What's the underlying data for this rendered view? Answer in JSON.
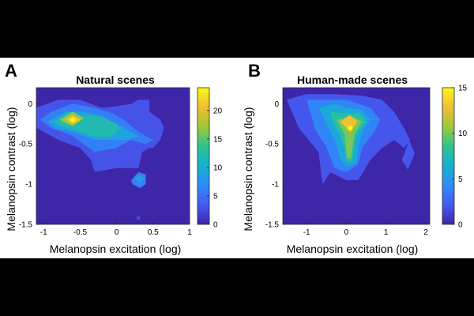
{
  "colors": {
    "background_band": "#000000",
    "plot_background": "#ffffff",
    "colormap": [
      "#3e26a8",
      "#4659f1",
      "#2e8cf7",
      "#16b0d1",
      "#2ec48f",
      "#9ec83a",
      "#f1bd35",
      "#f9fa14"
    ]
  },
  "chart_data": [
    {
      "panel_label": "A",
      "type": "heatmap",
      "style": "filled contour",
      "colormap": "parula",
      "title": "Natural scenes",
      "xlabel": "Melanopsin excitation (log)",
      "ylabel": "Melanopsin contrast (log)",
      "xlim": [
        -1.1,
        1.0
      ],
      "ylim": [
        -1.5,
        0.2
      ],
      "xticks": [
        -1,
        -0.5,
        0,
        0.5,
        1
      ],
      "xtick_labels": [
        "-1",
        "-0.5",
        "0",
        "0.5",
        "1"
      ],
      "yticks": [
        0,
        -0.5,
        -1,
        -1.5
      ],
      "ytick_labels": [
        "0",
        "-0.5",
        "-1",
        "-1.5"
      ],
      "colorbar": {
        "range": [
          0,
          24
        ],
        "ticks": [
          0,
          5,
          10,
          15,
          20
        ],
        "tick_labels": [
          "0",
          "5",
          "10",
          "15",
          "20"
        ]
      },
      "peak": {
        "x": -0.6,
        "y": -0.2,
        "value": 24
      },
      "grid": false,
      "levels": [
        {
          "level": 3,
          "polygons": [
            [
              [
                -1.1,
                -0.05
              ],
              [
                -0.8,
                0.05
              ],
              [
                -0.5,
                0.05
              ],
              [
                -0.2,
                -0.05
              ],
              [
                0.0,
                -0.03
              ],
              [
                0.2,
                0.0
              ],
              [
                0.3,
                0.05
              ],
              [
                0.45,
                0.05
              ],
              [
                0.45,
                -0.1
              ],
              [
                0.6,
                -0.2
              ],
              [
                0.65,
                -0.3
              ],
              [
                0.6,
                -0.45
              ],
              [
                0.5,
                -0.55
              ],
              [
                0.45,
                -0.55
              ],
              [
                0.35,
                -0.6
              ],
              [
                0.3,
                -0.8
              ],
              [
                0.0,
                -0.8
              ],
              [
                -0.3,
                -0.85
              ],
              [
                -0.35,
                -0.7
              ],
              [
                -0.5,
                -0.55
              ],
              [
                -0.8,
                -0.45
              ],
              [
                -1.1,
                -0.3
              ]
            ],
            [
              [
                0.28,
                -1.4
              ],
              [
                0.32,
                -1.4
              ],
              [
                0.32,
                -1.44
              ],
              [
                0.28,
                -1.44
              ]
            ]
          ]
        },
        {
          "level": 6,
          "polygons": [
            [
              [
                -1.05,
                -0.2
              ],
              [
                -0.9,
                -0.1
              ],
              [
                -0.6,
                0.0
              ],
              [
                -0.3,
                -0.05
              ],
              [
                -0.05,
                -0.12
              ],
              [
                0.1,
                -0.2
              ],
              [
                0.3,
                -0.35
              ],
              [
                0.5,
                -0.45
              ],
              [
                0.4,
                -0.5
              ],
              [
                0.2,
                -0.45
              ],
              [
                0.0,
                -0.55
              ],
              [
                -0.3,
                -0.6
              ],
              [
                -0.6,
                -0.4
              ],
              [
                -0.9,
                -0.3
              ]
            ],
            [
              [
                0.2,
                -0.95
              ],
              [
                0.3,
                -0.85
              ],
              [
                0.4,
                -0.88
              ],
              [
                0.4,
                -1.0
              ],
              [
                0.32,
                -1.05
              ],
              [
                0.22,
                -1.0
              ]
            ]
          ]
        },
        {
          "level": 9,
          "polygons": [
            [
              [
                -0.95,
                -0.22
              ],
              [
                -0.7,
                -0.1
              ],
              [
                -0.45,
                -0.1
              ],
              [
                -0.2,
                -0.15
              ],
              [
                0.0,
                -0.25
              ],
              [
                0.3,
                -0.4
              ],
              [
                0.15,
                -0.45
              ],
              [
                -0.05,
                -0.45
              ],
              [
                -0.3,
                -0.45
              ],
              [
                -0.6,
                -0.35
              ],
              [
                -0.85,
                -0.3
              ]
            ],
            [
              [
                0.25,
                -0.93
              ],
              [
                0.32,
                -0.89
              ],
              [
                0.37,
                -0.93
              ],
              [
                0.32,
                -0.98
              ]
            ]
          ]
        },
        {
          "level": 12,
          "polygons": [
            [
              [
                -0.85,
                -0.22
              ],
              [
                -0.65,
                -0.1
              ],
              [
                -0.45,
                -0.15
              ],
              [
                -0.25,
                -0.15
              ],
              [
                0.0,
                -0.25
              ],
              [
                0.05,
                -0.32
              ],
              [
                -0.1,
                -0.42
              ],
              [
                -0.35,
                -0.4
              ],
              [
                -0.6,
                -0.32
              ],
              [
                -0.8,
                -0.27
              ]
            ]
          ]
        },
        {
          "level": 17,
          "polygons": [
            [
              [
                -0.78,
                -0.2
              ],
              [
                -0.6,
                -0.1
              ],
              [
                -0.45,
                -0.18
              ],
              [
                -0.6,
                -0.28
              ]
            ]
          ]
        },
        {
          "level": 21,
          "polygons": [
            [
              [
                -0.7,
                -0.2
              ],
              [
                -0.6,
                -0.14
              ],
              [
                -0.5,
                -0.2
              ],
              [
                -0.6,
                -0.25
              ]
            ]
          ]
        }
      ]
    },
    {
      "panel_label": "B",
      "type": "heatmap",
      "style": "filled contour",
      "colormap": "parula",
      "title": "Human-made scenes",
      "xlabel": "Melanopsin excitation (log)",
      "ylabel": "Melanopsin contrast (log)",
      "xlim": [
        -1.6,
        2.1
      ],
      "ylim": [
        -1.5,
        0.2
      ],
      "xticks": [
        -1,
        0,
        1,
        2
      ],
      "xtick_labels": [
        "-1",
        "0",
        "1",
        "2"
      ],
      "yticks": [
        0,
        -0.5,
        -1,
        -1.5
      ],
      "ytick_labels": [
        "0",
        "-0.5",
        "-1",
        "-1.5"
      ],
      "colorbar": {
        "range": [
          0,
          15
        ],
        "ticks": [
          0,
          5,
          10,
          15
        ],
        "tick_labels": [
          "0",
          "5",
          "10",
          "15"
        ]
      },
      "peak": {
        "x": 0.1,
        "y": -0.3,
        "value": 15
      },
      "grid": false,
      "levels": [
        {
          "level": 2,
          "polygons": [
            [
              [
                -1.5,
                0.05
              ],
              [
                -1.0,
                0.12
              ],
              [
                -0.3,
                0.12
              ],
              [
                0.4,
                0.1
              ],
              [
                0.9,
                0.05
              ],
              [
                1.2,
                -0.1
              ],
              [
                1.45,
                -0.3
              ],
              [
                1.6,
                -0.45
              ],
              [
                1.45,
                -0.55
              ],
              [
                1.2,
                -0.45
              ],
              [
                0.9,
                -0.55
              ],
              [
                0.6,
                -0.7
              ],
              [
                0.3,
                -0.95
              ],
              [
                0.0,
                -0.95
              ],
              [
                -0.4,
                -0.85
              ],
              [
                -0.6,
                -1.0
              ],
              [
                -0.7,
                -0.6
              ],
              [
                -1.2,
                -0.3
              ]
            ],
            [
              [
                1.4,
                -0.7
              ],
              [
                1.58,
                -0.45
              ],
              [
                1.72,
                -0.62
              ],
              [
                1.55,
                -0.82
              ]
            ]
          ]
        },
        {
          "level": 4,
          "polygons": [
            [
              [
                -1.0,
                0.05
              ],
              [
                -0.5,
                0.05
              ],
              [
                0.0,
                0.05
              ],
              [
                0.6,
                -0.05
              ],
              [
                0.85,
                -0.2
              ],
              [
                0.7,
                -0.35
              ],
              [
                0.4,
                -0.55
              ],
              [
                0.3,
                -0.75
              ],
              [
                0.0,
                -0.85
              ],
              [
                -0.3,
                -0.8
              ],
              [
                -0.5,
                -0.55
              ],
              [
                -0.8,
                -0.3
              ]
            ]
          ]
        },
        {
          "level": 6,
          "polygons": [
            [
              [
                -0.7,
                -0.05
              ],
              [
                -0.3,
                0.0
              ],
              [
                0.0,
                -0.05
              ],
              [
                0.4,
                -0.08
              ],
              [
                0.6,
                -0.2
              ],
              [
                0.4,
                -0.35
              ],
              [
                0.3,
                -0.55
              ],
              [
                0.25,
                -0.75
              ],
              [
                0.0,
                -0.78
              ],
              [
                -0.15,
                -0.7
              ],
              [
                -0.25,
                -0.5
              ],
              [
                -0.55,
                -0.2
              ]
            ]
          ]
        },
        {
          "level": 8,
          "polygons": [
            [
              [
                -0.4,
                -0.1
              ],
              [
                0.0,
                -0.12
              ],
              [
                0.35,
                -0.12
              ],
              [
                0.5,
                -0.22
              ],
              [
                0.3,
                -0.35
              ],
              [
                0.2,
                -0.5
              ],
              [
                0.15,
                -0.72
              ],
              [
                0.0,
                -0.72
              ],
              [
                -0.05,
                -0.55
              ],
              [
                -0.15,
                -0.4
              ],
              [
                -0.35,
                -0.2
              ]
            ]
          ]
        },
        {
          "level": 10,
          "polygons": [
            [
              [
                -0.25,
                -0.2
              ],
              [
                0.1,
                -0.15
              ],
              [
                0.4,
                -0.22
              ],
              [
                0.2,
                -0.38
              ],
              [
                0.12,
                -0.68
              ],
              [
                0.02,
                -0.68
              ],
              [
                -0.05,
                -0.38
              ]
            ]
          ]
        },
        {
          "level": 13,
          "polygons": [
            [
              [
                -0.15,
                -0.22
              ],
              [
                0.08,
                -0.14
              ],
              [
                0.28,
                -0.22
              ],
              [
                0.1,
                -0.36
              ]
            ]
          ]
        }
      ]
    }
  ]
}
